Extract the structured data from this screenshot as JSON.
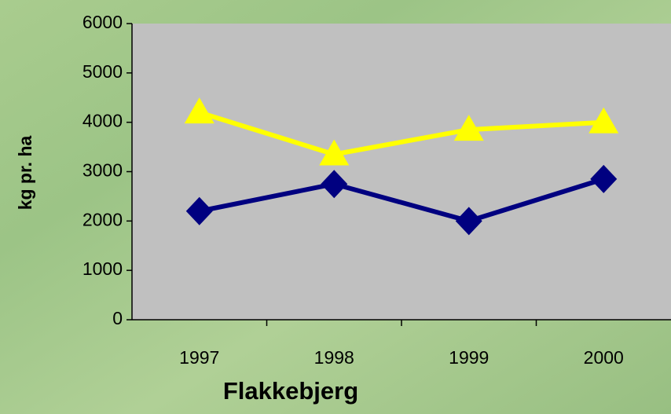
{
  "chart_data": {
    "type": "line",
    "x_label": "Flakkebjerg",
    "y_label": "kg pr. ha",
    "categories": [
      "1997",
      "1998",
      "1999",
      "2000"
    ],
    "series": [
      {
        "color": "#000080",
        "marker": "diamond",
        "values": [
          2200,
          2750,
          2000,
          2850
        ]
      },
      {
        "color": "#ffff00",
        "marker": "triangle",
        "values": [
          4200,
          3350,
          3850,
          4000
        ]
      }
    ],
    "ylim": [
      0,
      6000
    ],
    "yticks": [
      0,
      1000,
      2000,
      3000,
      4000,
      5000,
      6000
    ],
    "plot_background": "#c0c0c0"
  }
}
